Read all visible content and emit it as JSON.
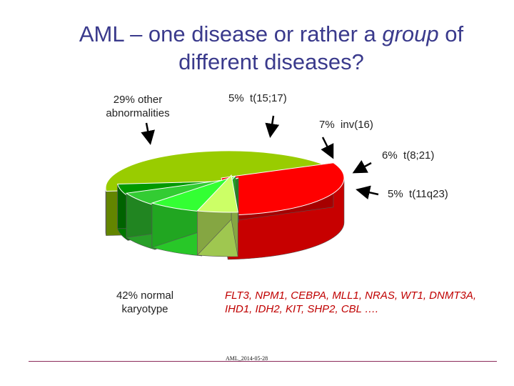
{
  "title": {
    "line1": "AML – one disease or rather a ",
    "line1_emphasis": "group",
    "line1_tail": " of",
    "line2": "different diseases?"
  },
  "chart_data": {
    "type": "pie",
    "style": "3d-exploded",
    "categories": [
      "normal karyotype",
      "other abnormalities",
      "t(15;17)",
      "inv(16)",
      "t(8;21)",
      "t(11q23)"
    ],
    "values": [
      42,
      29,
      5,
      7,
      6,
      5
    ],
    "colors": [
      "#99cc00",
      "#ff0000",
      "#ccff66",
      "#33ff33",
      "#33cc33",
      "#009900"
    ],
    "labels": {
      "normal": {
        "pct": "42%",
        "text1": "normal",
        "text2": "karyotype"
      },
      "other": {
        "pct": "29%",
        "text1": "other",
        "text2": "abnormalities"
      },
      "t1517": {
        "pct": "5%",
        "text": "t(15;17)"
      },
      "inv16": {
        "pct": "7%",
        "text": "inv(16)"
      },
      "t821": {
        "pct": "6%",
        "text": "t(8;21)"
      },
      "t11q23": {
        "pct": "5%",
        "text": "t(11q23)"
      }
    }
  },
  "genes": "FLT3, NPM1, CEBPA, MLL1, NRAS, WT1, DNMT3A, IHD1, IDH2, KIT, SHP2, CBL ….",
  "footer": "AML_2014-05-28"
}
